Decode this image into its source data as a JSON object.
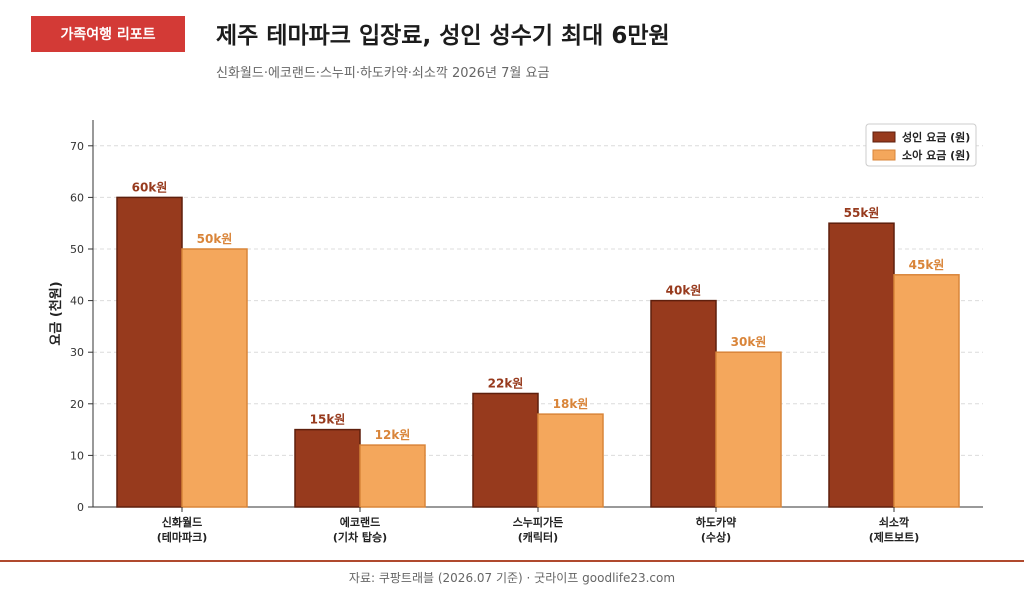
{
  "header": {
    "badge": "가족여행 리포트",
    "title": "제주 테마파크 입장료, 성인 성수기 최대 6만원",
    "subtitle": "신화월드·에코랜드·스누피·하도카약·쇠소깍 2026년 7월 요금"
  },
  "footer": {
    "source": "자료: 쿠팡트래블 (2026.07 기준) · 굿라이프 goodlife23.com"
  },
  "colors": {
    "adult": "#973a1d",
    "adult_stroke": "#5e1f0d",
    "child": "#f4a75c",
    "child_stroke": "#d9853a",
    "accent": "#d33a36"
  },
  "chart_data": {
    "type": "bar",
    "categories": [
      [
        "신화월드",
        "(테마파크)"
      ],
      [
        "에코랜드",
        "(기차 탑승)"
      ],
      [
        "스누피가든",
        "(캐릭터)"
      ],
      [
        "하도카약",
        "(수상)"
      ],
      [
        "쇠소깍",
        "(제트보트)"
      ]
    ],
    "series": [
      {
        "name": "성인 요금 (원)",
        "values": [
          60,
          15,
          22,
          40,
          55
        ],
        "labels": [
          "60k원",
          "15k원",
          "22k원",
          "40k원",
          "55k원"
        ]
      },
      {
        "name": "소아 요금 (원)",
        "values": [
          50,
          12,
          18,
          30,
          45
        ],
        "labels": [
          "50k원",
          "12k원",
          "18k원",
          "30k원",
          "45k원"
        ]
      }
    ],
    "ylabel": "요금 (천원)",
    "xlabel": "",
    "ylim": [
      0,
      75
    ],
    "yticks": [
      0,
      10,
      20,
      30,
      40,
      50,
      60,
      70
    ],
    "grid": true,
    "legend": "top-right"
  }
}
